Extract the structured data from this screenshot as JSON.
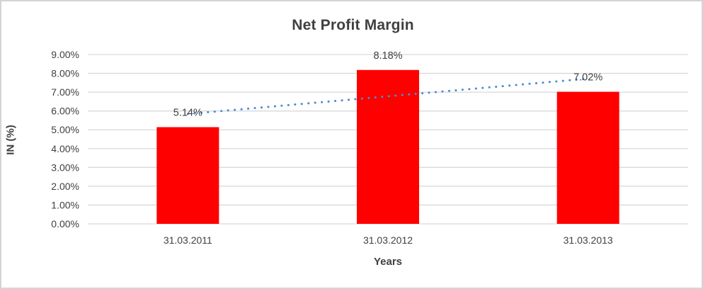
{
  "window": {
    "background": "#FFFFFF",
    "border_color": "#D4D4D4"
  },
  "chart_data": {
    "type": "bar",
    "title": "Net Profit Margin",
    "xlabel": "Years",
    "ylabel": "IN (%)",
    "categories": [
      "31.03.2011",
      "31.03.2012",
      "31.03.2013"
    ],
    "series": [
      {
        "name": "Net Profit Margin",
        "values": [
          5.14,
          8.18,
          7.02
        ]
      }
    ],
    "data_labels": [
      "5.14%",
      "8.18%",
      "7.02%"
    ],
    "y_ticks": [
      "0.00%",
      "1.00%",
      "2.00%",
      "3.00%",
      "4.00%",
      "5.00%",
      "6.00%",
      "7.00%",
      "8.00%",
      "9.00%"
    ],
    "ylim": [
      0,
      9
    ],
    "grid": true,
    "legend": "none",
    "trendline": {
      "type": "linear",
      "style": "dotted",
      "applies_to": "Net Profit Margin"
    },
    "colors": {
      "bar": "#FF0000",
      "gridline": "#D9D9D9",
      "axis_line": "#D9D9D9",
      "text": "#404040",
      "trendline": "#4A8BD5"
    }
  }
}
